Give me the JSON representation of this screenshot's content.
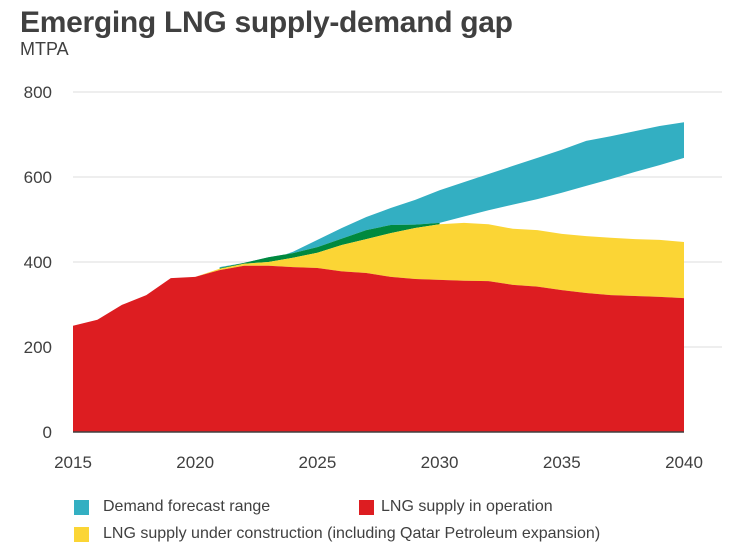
{
  "header": {
    "title": "Emerging LNG supply-demand gap",
    "subtitle": "MTPA"
  },
  "colors": {
    "demand": "#33AFC2",
    "overlap": "#00893E",
    "construction": "#FBD535",
    "operation": "#DD1D21",
    "grid": "#DDDDDD",
    "axis": "#404040"
  },
  "legend": [
    {
      "label": "Demand forecast range",
      "color_key": "demand"
    },
    {
      "label": "LNG supply in operation",
      "color_key": "operation"
    },
    {
      "label": "LNG supply under construction (including Qatar Petroleum expansion)",
      "color_key": "construction"
    }
  ],
  "chart_data": {
    "type": "area",
    "title": "Emerging LNG supply-demand gap",
    "ylabel": "MTPA",
    "xlabel": "",
    "xlim": [
      2015,
      2040
    ],
    "ylim": [
      0,
      800
    ],
    "x_ticks": [
      2015,
      2020,
      2025,
      2030,
      2035,
      2040
    ],
    "y_ticks": [
      0,
      200,
      400,
      600,
      800
    ],
    "grid": "horizontal",
    "legend_position": "bottom",
    "x": [
      2015,
      2016,
      2017,
      2018,
      2019,
      2020,
      2021,
      2022,
      2023,
      2024,
      2025,
      2026,
      2027,
      2028,
      2029,
      2030,
      2031,
      2032,
      2033,
      2034,
      2035,
      2036,
      2037,
      2038,
      2039,
      2040
    ],
    "series": [
      {
        "name": "LNG supply in operation",
        "key": "operation",
        "values": [
          250,
          264,
          299,
          322,
          362,
          365,
          381,
          391,
          391,
          388,
          386,
          378,
          374,
          365,
          360,
          358,
          356,
          355,
          346,
          342,
          334,
          327,
          322,
          320,
          318,
          315
        ]
      },
      {
        "name": "Total LNG supply (in operation + under construction)",
        "key": "construction_top",
        "values": [
          250,
          264,
          299,
          322,
          362,
          365,
          384,
          396,
          400,
          410,
          422,
          440,
          454,
          468,
          480,
          489,
          492,
          489,
          478,
          475,
          466,
          461,
          457,
          454,
          452,
          447
        ]
      },
      {
        "name": "Demand forecast low",
        "key": "demand_low",
        "values": [
          null,
          null,
          null,
          null,
          null,
          null,
          386,
          398,
          411,
          421,
          435,
          455,
          475,
          487,
          488,
          492,
          507,
          522,
          535,
          548,
          563,
          579,
          595,
          612,
          628,
          645
        ]
      },
      {
        "name": "Demand forecast high",
        "key": "demand_high",
        "values": [
          null,
          null,
          null,
          null,
          null,
          null,
          388,
          398,
          404,
          424,
          452,
          480,
          506,
          527,
          546,
          569,
          588,
          607,
          626,
          645,
          664,
          685,
          696,
          708,
          720,
          729
        ]
      }
    ]
  }
}
